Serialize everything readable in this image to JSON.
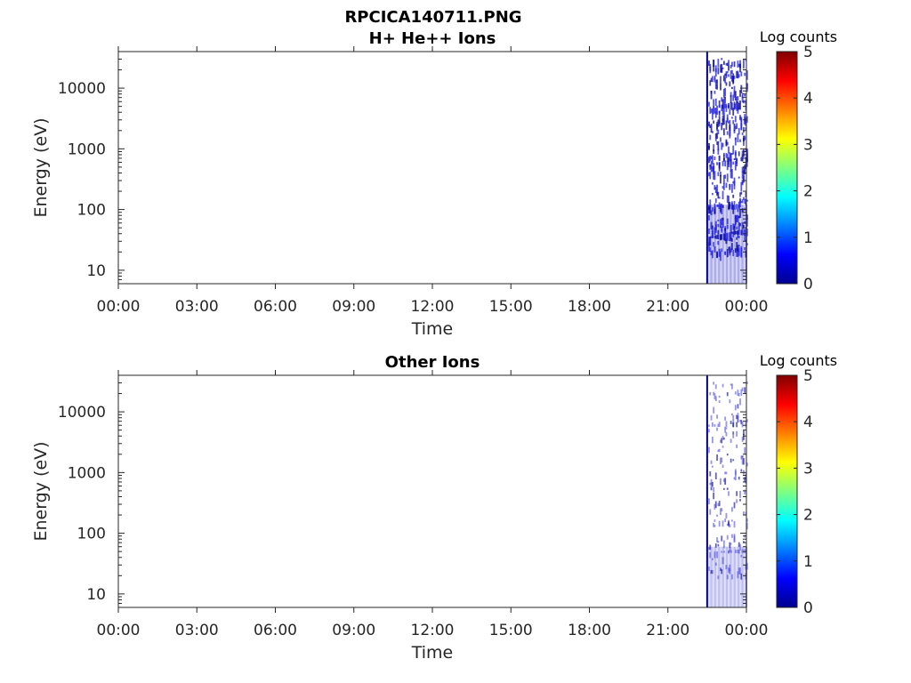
{
  "figure": {
    "title": "RPCICA140711.PNG"
  },
  "chart_data": [
    {
      "type": "heatmap",
      "title": "H+ He++ Ions",
      "xlabel": "Time",
      "ylabel": "Energy (eV)",
      "x_tick_labels": [
        "00:00",
        "03:00",
        "06:00",
        "09:00",
        "12:00",
        "15:00",
        "18:00",
        "21:00",
        "00:00"
      ],
      "x_range_hours": [
        0,
        24
      ],
      "y_scale": "log",
      "y_ticks": [
        10,
        100,
        1000,
        10000
      ],
      "y_tick_labels": [
        "10",
        "100",
        "1000",
        "10000"
      ],
      "y_range": [
        6,
        40000
      ],
      "colorbar": {
        "label": "Log counts",
        "range": [
          0,
          5
        ],
        "tick_labels": [
          "0",
          "1",
          "2",
          "3",
          "4",
          "5"
        ],
        "colormap": "jet"
      },
      "data_start_hour": 22.5,
      "data_note": "Data present only from ~22:30 to 24:00; values mostly near 0-1 log counts (dark blue)"
    },
    {
      "type": "heatmap",
      "title": "Other Ions",
      "xlabel": "Time",
      "ylabel": "Energy (eV)",
      "x_tick_labels": [
        "00:00",
        "03:00",
        "06:00",
        "09:00",
        "12:00",
        "15:00",
        "18:00",
        "21:00",
        "00:00"
      ],
      "x_range_hours": [
        0,
        24
      ],
      "y_scale": "log",
      "y_ticks": [
        10,
        100,
        1000,
        10000
      ],
      "y_tick_labels": [
        "10",
        "100",
        "1000",
        "10000"
      ],
      "y_range": [
        6,
        40000
      ],
      "colorbar": {
        "label": "Log counts",
        "range": [
          0,
          5
        ],
        "tick_labels": [
          "0",
          "1",
          "2",
          "3",
          "4",
          "5"
        ],
        "colormap": "jet"
      },
      "data_start_hour": 22.5,
      "data_note": "Sparse data from ~22:30 to 24:00; values near 0-1 log counts"
    }
  ]
}
